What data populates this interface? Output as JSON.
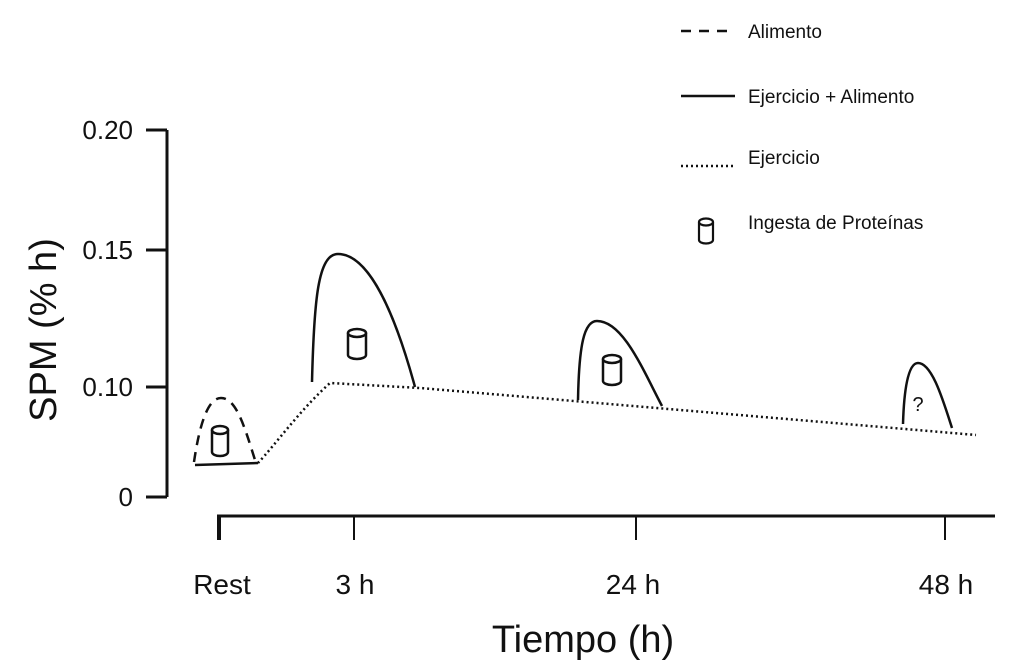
{
  "chart_data": {
    "type": "line",
    "title": "",
    "xlabel": "Tiempo (h)",
    "ylabel": "SPM (% h)",
    "ylim": [
      0,
      0.2
    ],
    "y_ticks": [
      "0",
      "0.10",
      "0.15",
      "0.20"
    ],
    "x_ticks": [
      "Rest",
      "3 h",
      "24 h",
      "48 h"
    ],
    "grid": false,
    "legend_position": "top-right",
    "series": [
      {
        "name": "Alimento",
        "line_style": "dashed",
        "points": [
          [
            "Rest",
            0.073
          ],
          [
            "Rest",
            0.095
          ],
          [
            "Rest",
            0.073
          ]
        ]
      },
      {
        "name": "Ejercicio + Alimento",
        "line_style": "solid",
        "points": [
          [
            "Rest",
            0.073
          ],
          [
            "3 h",
            0.15
          ],
          [
            "24 h",
            0.124
          ],
          [
            "48 h",
            0.108
          ]
        ]
      },
      {
        "name": "Ejercicio",
        "line_style": "dotted",
        "points": [
          [
            "Rest",
            0.073
          ],
          [
            "3 h",
            0.101
          ],
          [
            "24 h",
            0.093
          ],
          [
            "48 h",
            0.082
          ]
        ]
      }
    ],
    "legend": [
      {
        "label": "Alimento",
        "style": "dashed"
      },
      {
        "label": "Ejercicio + Alimento",
        "style": "solid"
      },
      {
        "label": "Ejercicio",
        "style": "dotted"
      },
      {
        "label": "Ingesta de Proteínas",
        "style": "cylinder-icon"
      }
    ],
    "annotations": [
      {
        "at": "48 h",
        "text": "?"
      }
    ],
    "protein_intake_markers": [
      "Rest",
      "3 h",
      "24 h"
    ],
    "colors": {
      "ink": "#111111",
      "background": "#ffffff"
    }
  }
}
